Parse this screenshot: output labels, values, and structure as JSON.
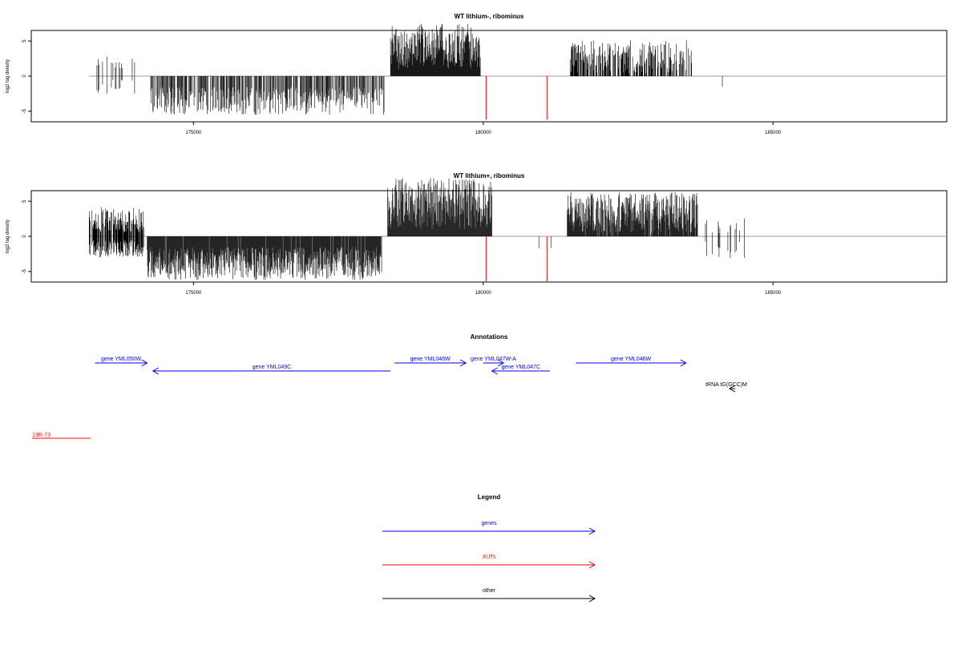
{
  "chart_data": [
    {
      "type": "bar",
      "title": "WT lithium-, ribominus",
      "ylabel": "log2 tag density",
      "xlim": [
        172200,
        188000
      ],
      "ylim": [
        -6.5,
        6.5
      ],
      "yticks": [
        -5,
        0,
        5
      ],
      "xticks": [
        175000,
        180000,
        185000
      ],
      "x_tick_labels": [
        "175000",
        "180000",
        "185000"
      ],
      "y_tick_labels": [
        "-5",
        "0",
        "5"
      ],
      "baseline": {
        "from": 173200,
        "to": 188000,
        "color": "#999999"
      },
      "regions": [
        {
          "start": 173250,
          "end": 174150,
          "density": 0.1,
          "min": 0.6,
          "max": 2.8,
          "neg_min": -0.5,
          "neg_max": -2.5
        },
        {
          "start": 174200,
          "end": 178300,
          "density": 0.55,
          "neg_min": -1.5,
          "neg_max": -5.5,
          "min": 0.2,
          "max": 0.4
        },
        {
          "start": 178400,
          "end": 179950,
          "density": 1.0,
          "min": 1.0,
          "max": 7.5,
          "neg_min": -0.1,
          "neg_max": -0.3
        },
        {
          "start": 181500,
          "end": 183600,
          "density": 0.6,
          "min": 0.4,
          "max": 5.2,
          "neg_min": -0.1,
          "neg_max": -0.3
        },
        {
          "start": 183850,
          "end": 184550,
          "density": 0.03,
          "min": 0.1,
          "max": 0.3,
          "neg_min": -1.5,
          "neg_max": -3.5
        }
      ],
      "xut_spikes": [
        {
          "x": 180050,
          "value": -6.2
        },
        {
          "x": 181100,
          "value": -6.2
        }
      ]
    },
    {
      "type": "bar",
      "title": "WT lithium+, ribominus",
      "ylabel": "log2 tag density",
      "xlim": [
        172200,
        188000
      ],
      "ylim": [
        -6.5,
        6.5
      ],
      "yticks": [
        -5,
        0,
        5
      ],
      "xticks": [
        175000,
        180000,
        185000
      ],
      "x_tick_labels": [
        "175000",
        "180000",
        "185000"
      ],
      "y_tick_labels": [
        "-5",
        "0",
        "5"
      ],
      "baseline": {
        "from": 173200,
        "to": 188000,
        "color": "#999999"
      },
      "regions": [
        {
          "start": 173200,
          "end": 174150,
          "density": 0.8,
          "min": 0.5,
          "max": 4.2,
          "neg_min": -0.5,
          "neg_max": -3.0
        },
        {
          "start": 174200,
          "end": 178250,
          "density": 0.95,
          "neg_min": -1.5,
          "neg_max": -6.2,
          "min": 0.1,
          "max": 0.3
        },
        {
          "start": 178350,
          "end": 180150,
          "density": 1.0,
          "min": 1.0,
          "max": 8.3,
          "neg_min": -0.1,
          "neg_max": -0.5
        },
        {
          "start": 180850,
          "end": 181350,
          "density": 0.05,
          "min": 0.1,
          "max": 0.3,
          "neg_min": -0.5,
          "neg_max": -2.5
        },
        {
          "start": 181450,
          "end": 183700,
          "density": 0.95,
          "min": 0.5,
          "max": 6.3,
          "neg_min": -0.1,
          "neg_max": -0.5
        },
        {
          "start": 183800,
          "end": 184550,
          "density": 0.08,
          "min": 0.2,
          "max": 2.6,
          "neg_min": -0.5,
          "neg_max": -4.0
        }
      ],
      "xut_spikes": [
        {
          "x": 180050,
          "value": -6.4
        },
        {
          "x": 181100,
          "value": -6.4
        }
      ]
    }
  ],
  "annotations": {
    "title": "Annotations",
    "genes": [
      {
        "label": "gene YML050W",
        "start": 173300,
        "end": 174200,
        "row": 0,
        "strand": "+",
        "color": "#0000ff"
      },
      {
        "label": "gene YML049C",
        "start": 174300,
        "end": 178400,
        "row": 1,
        "strand": "-",
        "color": "#0000ff"
      },
      {
        "label": "gene YML048W",
        "start": 178470,
        "end": 179700,
        "row": 0,
        "strand": "+",
        "color": "#0000ff"
      },
      {
        "label": "gene YML047W-A",
        "start": 180000,
        "end": 180350,
        "row": 0,
        "strand": "+",
        "color": "#0000ff"
      },
      {
        "label": "gene YML047C",
        "start": 180150,
        "end": 181150,
        "row": 1,
        "strand": "-",
        "color": "#0000ff"
      },
      {
        "label": "gene YML046W",
        "start": 181600,
        "end": 183500,
        "row": 0,
        "strand": "+",
        "color": "#0000ff"
      },
      {
        "label": "tRNA tG(GCC)M",
        "start": 184250,
        "end": 184350,
        "row": 2,
        "strand": "-",
        "color": "#000000"
      }
    ],
    "xut": {
      "label": "13R-73",
      "color": "#ff0000"
    }
  },
  "legend": {
    "title": "Legend",
    "items": [
      {
        "label": "genes",
        "color": "#0000ff"
      },
      {
        "label": "XUTs",
        "color": "#ff0000"
      },
      {
        "label": "other",
        "color": "#000000"
      }
    ]
  },
  "colors": {
    "bars": "#000000",
    "baseline": "#999999",
    "xut_spike": "#ff0000",
    "frame": "#000000"
  }
}
